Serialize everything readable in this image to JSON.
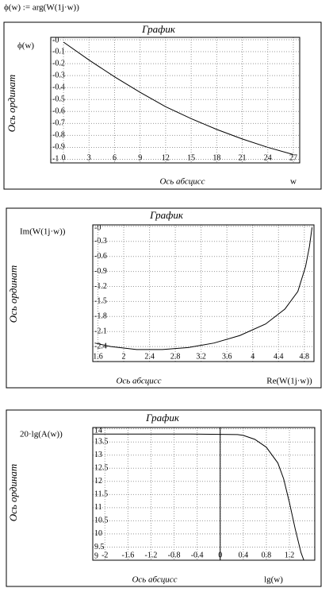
{
  "formula": "ϕ(w) := arg(W(1j·w))",
  "chart_data": [
    {
      "type": "line",
      "title": "График",
      "y_label": "ϕ(w)",
      "y_axis_title": "Ось ординат",
      "x_axis_title": "Ось абсцисс",
      "x_label": "w",
      "x": [
        0,
        3,
        6,
        9,
        12,
        15,
        18,
        21,
        24,
        27
      ],
      "series": [
        {
          "color": "#000000",
          "values": [
            -0.02,
            -0.17,
            -0.31,
            -0.44,
            -0.56,
            -0.66,
            -0.75,
            -0.83,
            -0.9,
            -0.96
          ]
        }
      ],
      "xlim": [
        -1.5,
        27.75
      ],
      "ylim": [
        -1.03,
        0.02
      ],
      "xticks": [
        0,
        3,
        6,
        9,
        12,
        15,
        18,
        21,
        24,
        27
      ],
      "yticks": [
        {
          "value": 0,
          "label": "-0"
        },
        -0.1,
        -0.2,
        -0.3,
        -0.4,
        -0.5,
        -0.6,
        -0.7,
        -0.8,
        -0.9,
        -1
      ],
      "grid": true
    },
    {
      "type": "line",
      "title": "График",
      "y_label": "Im(W(1j·w))",
      "y_axis_title": "Ось ординат",
      "x_axis_title": "Ось абсцисс",
      "x_label": "Re(W(1j·w))",
      "x": [
        1.55,
        1.8,
        2.2,
        2.6,
        3.0,
        3.4,
        3.8,
        4.2,
        4.5,
        4.7,
        4.82,
        4.88,
        4.92
      ],
      "series": [
        {
          "color": "#000000",
          "values": [
            -2.33,
            -2.4,
            -2.46,
            -2.46,
            -2.42,
            -2.33,
            -2.18,
            -1.95,
            -1.65,
            -1.3,
            -0.8,
            -0.4,
            -0.02
          ]
        }
      ],
      "xlim": [
        1.52,
        4.95
      ],
      "ylim": [
        -2.7,
        0.03
      ],
      "xticks": [
        1.6,
        2,
        2.4,
        2.8,
        3.2,
        3.6,
        4,
        4.4,
        4.8
      ],
      "yticks": [
        {
          "value": 0,
          "label": "-0"
        },
        -0.3,
        -0.6,
        -0.9,
        -1.2,
        -1.5,
        -1.8,
        -2.1,
        -2.4
      ],
      "grid": true
    },
    {
      "type": "line",
      "title": "График",
      "y_label": "20·lg(A(w))",
      "y_axis_title": "Ось ординат",
      "x_axis_title": "Ось абсцисс",
      "x_label": "lg(w)",
      "x": [
        -2.2,
        -1.5,
        -1.0,
        -0.5,
        0,
        0.3,
        0.4,
        0.6,
        0.8,
        1.0,
        1.1,
        1.2,
        1.3,
        1.4,
        1.45
      ],
      "series": [
        {
          "color": "#000000",
          "values": [
            13.8,
            13.8,
            13.8,
            13.8,
            13.79,
            13.78,
            13.75,
            13.6,
            13.3,
            12.7,
            12.1,
            11.2,
            10.2,
            9.3,
            9.0
          ]
        }
      ],
      "xlim": [
        -2.21,
        1.64
      ],
      "ylim": [
        9,
        14.05
      ],
      "xticks": [
        -2,
        -1.6,
        -1.2,
        -0.8,
        -0.4,
        0,
        0.4,
        0.8,
        1.2
      ],
      "yticks": [
        14,
        13.5,
        13,
        12.5,
        12,
        11.5,
        11,
        10.5,
        10,
        9.5,
        9
      ],
      "grid": true,
      "zero_line": true
    }
  ]
}
